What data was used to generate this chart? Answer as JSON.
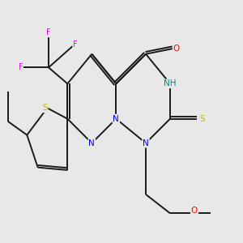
{
  "background_color": "#e8e8e8",
  "bond_color": "#1a1a1a",
  "atom_colors": {
    "N": "#0000dd",
    "O": "#ff0000",
    "S_thione": "#bbbb00",
    "S_thio": "#bbbb00",
    "F": "#ee00ee",
    "NH": "#008888",
    "C": "#1a1a1a"
  },
  "figsize": [
    3.0,
    3.0
  ],
  "dpi": 100,
  "lw": 1.4,
  "fontsize": 7.5
}
